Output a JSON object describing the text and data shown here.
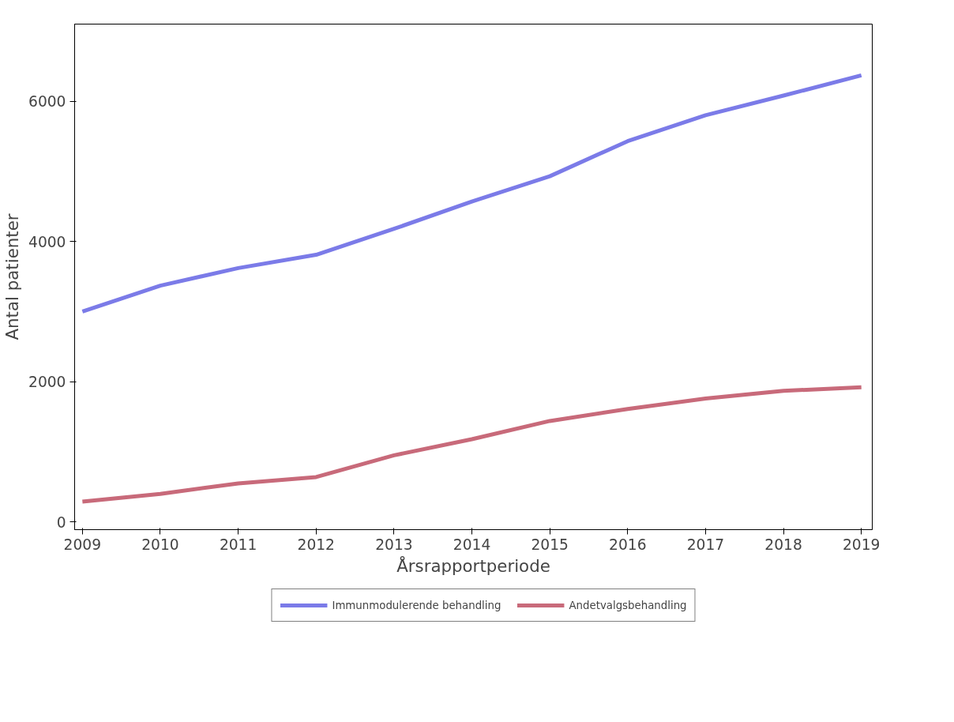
{
  "chart_data": {
    "type": "line",
    "xlabel": "Årsrapportperiode",
    "ylabel": "Antal patienter",
    "x": [
      2009,
      2010,
      2011,
      2012,
      2013,
      2014,
      2015,
      2016,
      2017,
      2018,
      2019
    ],
    "series": [
      {
        "name": "Immunmodulerende behandling",
        "color": "#7b7be8",
        "values": [
          3000,
          3370,
          3620,
          3810,
          4180,
          4570,
          4930,
          5430,
          5800,
          6080,
          6370
        ]
      },
      {
        "name": "Andetvalgsbehandling",
        "color": "#c86a7a",
        "values": [
          290,
          400,
          550,
          640,
          950,
          1180,
          1440,
          1610,
          1760,
          1870,
          1920
        ]
      }
    ],
    "xlim": [
      2008.9,
      2019.14
    ],
    "ylim": [
      -110,
      7100
    ],
    "xticks": [
      2009,
      2010,
      2011,
      2012,
      2013,
      2014,
      2015,
      2016,
      2017,
      2018,
      2019
    ],
    "yticks": [
      0,
      2000,
      4000,
      6000
    ],
    "grid": false,
    "legend": "bottom",
    "line_style": "solid",
    "marker": "none"
  }
}
